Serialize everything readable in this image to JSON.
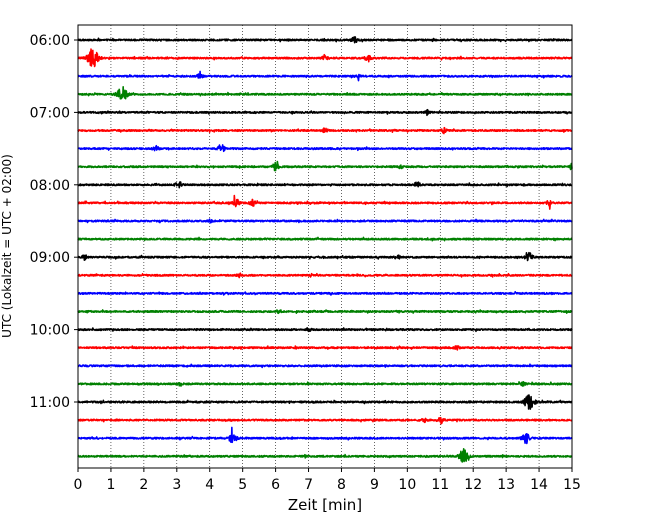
{
  "chart_data": {
    "type": "line",
    "title": "",
    "xlabel": "Zeit  [min]",
    "ylabel": "UTC (Lokalzeit = UTC + 02:00)",
    "xlim": [
      0,
      15
    ],
    "x_ticks": [
      "0",
      "1",
      "2",
      "3",
      "4",
      "5",
      "6",
      "7",
      "8",
      "9",
      "10",
      "11",
      "12",
      "13",
      "14",
      "15"
    ],
    "y_ticks": [
      "06:00",
      "07:00",
      "08:00",
      "09:00",
      "10:00",
      "11:00"
    ],
    "grid": "vertical dotted",
    "trace_interval_min": 15,
    "colors": [
      "#000000",
      "#ff0000",
      "#0000ff",
      "#008000"
    ],
    "traces": [
      {
        "start": "06:00",
        "color": "#000000",
        "events": [
          [
            8.4,
            0.5
          ]
        ]
      },
      {
        "start": "06:15",
        "color": "#ff0000",
        "events": [
          [
            0.45,
            1.5
          ],
          [
            7.5,
            0.45
          ],
          [
            8.8,
            0.5
          ]
        ]
      },
      {
        "start": "06:30",
        "color": "#0000ff",
        "events": [
          [
            3.7,
            0.35
          ],
          [
            8.5,
            0.3
          ]
        ]
      },
      {
        "start": "06:45",
        "color": "#008000",
        "events": [
          [
            1.35,
            1.2
          ]
        ]
      },
      {
        "start": "07:00",
        "color": "#000000",
        "events": [
          [
            10.6,
            0.3
          ]
        ]
      },
      {
        "start": "07:15",
        "color": "#ff0000",
        "events": [
          [
            7.5,
            0.35
          ],
          [
            11.1,
            0.45
          ]
        ]
      },
      {
        "start": "07:30",
        "color": "#0000ff",
        "events": [
          [
            2.35,
            0.5
          ],
          [
            4.35,
            0.6
          ]
        ]
      },
      {
        "start": "07:45",
        "color": "#008000",
        "events": [
          [
            6.0,
            0.55
          ],
          [
            9.8,
            0.3
          ],
          [
            15.0,
            0.5
          ]
        ]
      },
      {
        "start": "08:00",
        "color": "#000000",
        "events": [
          [
            3.05,
            0.55
          ],
          [
            10.3,
            0.4
          ]
        ]
      },
      {
        "start": "08:15",
        "color": "#ff0000",
        "events": [
          [
            4.8,
            0.6
          ],
          [
            5.3,
            0.45
          ],
          [
            14.3,
            0.35
          ]
        ]
      },
      {
        "start": "08:30",
        "color": "#0000ff",
        "events": [
          [
            4.0,
            0.25
          ]
        ]
      },
      {
        "start": "08:45",
        "color": "#008000",
        "events": []
      },
      {
        "start": "09:00",
        "color": "#000000",
        "events": [
          [
            0.2,
            0.35
          ],
          [
            9.7,
            0.35
          ],
          [
            13.7,
            0.65
          ]
        ]
      },
      {
        "start": "09:15",
        "color": "#ff0000",
        "events": [
          [
            4.9,
            0.25
          ]
        ]
      },
      {
        "start": "09:30",
        "color": "#0000ff",
        "events": []
      },
      {
        "start": "09:45",
        "color": "#008000",
        "events": [
          [
            6.1,
            0.25
          ]
        ]
      },
      {
        "start": "10:00",
        "color": "#000000",
        "events": [
          [
            7.0,
            0.3
          ]
        ]
      },
      {
        "start": "10:15",
        "color": "#ff0000",
        "events": [
          [
            11.5,
            0.25
          ]
        ]
      },
      {
        "start": "10:30",
        "color": "#0000ff",
        "events": []
      },
      {
        "start": "10:45",
        "color": "#008000",
        "events": [
          [
            3.1,
            0.3
          ],
          [
            13.5,
            0.3
          ]
        ]
      },
      {
        "start": "11:00",
        "color": "#000000",
        "events": [
          [
            13.7,
            1.3
          ]
        ]
      },
      {
        "start": "11:15",
        "color": "#ff0000",
        "events": [
          [
            10.5,
            0.4
          ],
          [
            11.0,
            0.5
          ]
        ]
      },
      {
        "start": "11:30",
        "color": "#0000ff",
        "events": [
          [
            4.7,
            0.8
          ],
          [
            13.6,
            0.8
          ]
        ]
      },
      {
        "start": "11:45",
        "color": "#008000",
        "events": [
          [
            11.7,
            1.1
          ]
        ]
      }
    ]
  }
}
